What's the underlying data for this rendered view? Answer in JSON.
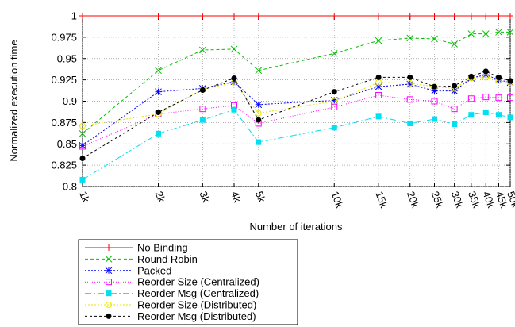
{
  "chart_data": {
    "type": "line",
    "title": "",
    "xlabel": "Number of iterations",
    "ylabel": "Normalized execution time",
    "x_scale": "log",
    "x": [
      1000,
      2000,
      3000,
      4000,
      5000,
      10000,
      15000,
      20000,
      25000,
      30000,
      35000,
      40000,
      45000,
      50000
    ],
    "x_tick_labels": [
      "1k",
      "2k",
      "3k",
      "4k",
      "5k",
      "10k",
      "15k",
      "20k",
      "25k",
      "30k",
      "35k",
      "40k",
      "45k",
      "50k"
    ],
    "ylim": [
      0.8,
      1.0
    ],
    "y_ticks": [
      0.8,
      0.825,
      0.85,
      0.875,
      0.9,
      0.925,
      0.95,
      0.975,
      1
    ],
    "y_tick_labels": [
      "0.8",
      "0.825",
      "0.85",
      "0.875",
      "0.9",
      "0.925",
      "0.95",
      "0.975",
      "1"
    ],
    "grid": true,
    "legend_position": "bottom-left",
    "series": [
      {
        "name": "No Binding",
        "color": "#ff0000",
        "marker": "plus",
        "dash": "",
        "values": [
          1,
          1,
          1,
          1,
          1,
          1,
          1,
          1,
          1,
          1,
          1,
          1,
          1,
          1
        ]
      },
      {
        "name": "Round Robin",
        "color": "#00c000",
        "marker": "cross",
        "dash": "4,3",
        "values": [
          0.862,
          0.936,
          0.96,
          0.961,
          0.936,
          0.956,
          0.971,
          0.974,
          0.973,
          0.967,
          0.979,
          0.979,
          0.981,
          0.981
        ]
      },
      {
        "name": "Packed",
        "color": "#0000ff",
        "marker": "star",
        "dash": "2,2",
        "values": [
          0.848,
          0.911,
          0.915,
          0.923,
          0.896,
          0.901,
          0.917,
          0.92,
          0.912,
          0.912,
          0.927,
          0.931,
          0.925,
          0.922
        ]
      },
      {
        "name": "Reorder Size (Centralized)",
        "color": "#ff00ff",
        "marker": "square",
        "dash": "1,2",
        "values": [
          0.847,
          0.885,
          0.891,
          0.895,
          0.874,
          0.893,
          0.907,
          0.902,
          0.9,
          0.891,
          0.903,
          0.905,
          0.904,
          0.904
        ]
      },
      {
        "name": "Reorder Msg (Centralized)",
        "color": "#00e0f0",
        "marker": "filled-square",
        "dash": "8,3,2,3",
        "values": [
          0.808,
          0.862,
          0.878,
          0.89,
          0.852,
          0.869,
          0.882,
          0.874,
          0.879,
          0.873,
          0.884,
          0.887,
          0.884,
          0.881
        ]
      },
      {
        "name": "Reorder Size (Distributed)",
        "color": "#e6e600",
        "marker": "circle",
        "dash": "2,2",
        "values": [
          0.871,
          0.885,
          0.914,
          0.922,
          0.886,
          0.9,
          0.922,
          0.921,
          0.917,
          0.915,
          0.927,
          0.928,
          0.924,
          0.922
        ]
      },
      {
        "name": "Reorder Msg (Distributed)",
        "color": "#000000",
        "marker": "filled-circle",
        "dash": "3,3",
        "values": [
          0.833,
          0.887,
          0.913,
          0.927,
          0.878,
          0.911,
          0.928,
          0.928,
          0.917,
          0.918,
          0.929,
          0.935,
          0.928,
          0.924
        ]
      }
    ]
  }
}
